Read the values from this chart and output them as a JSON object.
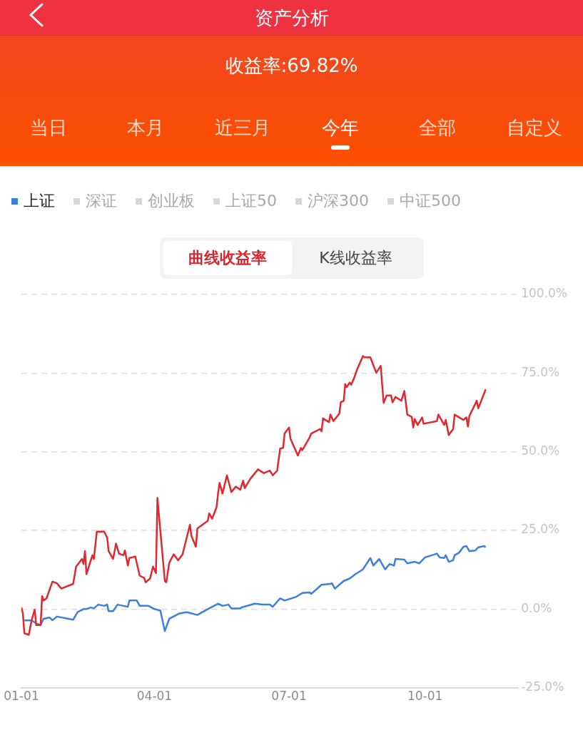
{
  "chart_data": {
    "type": "line",
    "title": "资产分析",
    "subtitle": "收益率:69.82%",
    "annotations": [
      "当日",
      "本月",
      "近三月",
      "今年",
      "全部",
      "自定义",
      "深证",
      "创业板",
      "上证50",
      "沪深300",
      "中证500",
      "曲线收益率",
      "K线收益率"
    ],
    "legend": "top left",
    "grid": "y",
    "xlim": [
      "--01-01",
      "--12-03"
    ],
    "xticks": [
      {
        "value": "--01-01",
        "label": "01-01"
      },
      {
        "value": "--04-01",
        "label": "04-01"
      },
      {
        "value": "--07-01",
        "label": "07-01"
      },
      {
        "value": "--10-01",
        "label": "10-01"
      }
    ],
    "ylim": [
      -25,
      100
    ],
    "yticks": [
      {
        "value": -25,
        "label": "-25.0%"
      },
      {
        "value": 0,
        "label": "0.0%"
      },
      {
        "value": 25,
        "label": "25.0%"
      },
      {
        "value": 50,
        "label": "50.0%"
      },
      {
        "value": 75,
        "label": "75.0%"
      },
      {
        "value": 100,
        "label": "100.0%"
      }
    ],
    "series": [
      {
        "color": "#e0282e",
        "x": [
          "--01-01",
          "--01-02",
          "--01-03",
          "--01-06",
          "--01-08",
          "--01-10",
          "--01-11",
          "--01-14",
          "--01-15",
          "--01-16",
          "--01-18",
          "--01-22",
          "--01-25",
          "--01-28",
          "--02-05",
          "--02-07",
          "--02-11",
          "--02-12",
          "--02-13",
          "--02-14",
          "--02-18",
          "--02-19",
          "--02-21",
          "--02-26",
          "--02-28",
          "--03-01",
          "--03-04",
          "--03-06",
          "--03-08",
          "--03-11",
          "--03-12",
          "--03-14",
          "--03-15",
          "--03-19",
          "--03-22",
          "--03-25",
          "--03-26",
          "--03-29",
          "--03-31",
          "--04-02",
          "--04-03",
          "--04-08",
          "--04-09",
          "--04-11",
          "--04-14",
          "--04-17",
          "--04-20",
          "--04-25",
          "--04-26",
          "--04-29",
          "--04-30",
          "--05-07",
          "--05-08",
          "--05-10",
          "--05-13",
          "--05-14",
          "--05-15",
          "--05-17",
          "--05-20",
          "--05-23",
          "--05-26",
          "--05-29",
          "--05-31",
          "--06-01",
          "--06-05",
          "--06-10",
          "--06-14",
          "--06-18",
          "--06-20",
          "--06-23",
          "--06-25",
          "--06-27",
          "--06-28",
          "--07-01",
          "--07-02",
          "--07-07",
          "--07-09",
          "--07-10",
          "--07-15",
          "--07-16",
          "--07-22",
          "--07-23",
          "--07-24",
          "--07-28",
          "--07-29",
          "--07-31",
          "--08-04",
          "--08-05",
          "--08-07",
          "--08-08",
          "--08-09",
          "--08-11",
          "--08-12",
          "--08-14",
          "--08-16",
          "--08-20",
          "--08-21",
          "--08-25",
          "--08-29",
          "--09-01",
          "--09-03",
          "--09-05",
          "--09-08",
          "--09-09",
          "--09-11",
          "--09-15",
          "--09-17",
          "--09-19",
          "--09-22",
          "--09-23",
          "--09-24",
          "--09-26",
          "--09-29",
          "--09-30",
          "--10-09",
          "--10-10",
          "--10-14",
          "--10-15",
          "--10-17",
          "--10-20",
          "--10-21",
          "--10-27",
          "--10-29",
          "--10-30",
          "--10-31",
          "--11-05",
          "--11-06",
          "--11-11"
        ],
        "values": [
          0.5,
          -1.4,
          -7.7,
          -8.2,
          -3.4,
          -0.2,
          -5.1,
          -5.1,
          4.1,
          2.7,
          3.4,
          8.7,
          8.2,
          6.5,
          8.0,
          13.5,
          15.9,
          14.3,
          18.4,
          11.1,
          17.1,
          15.9,
          24.6,
          24.6,
          22.7,
          18.4,
          15.9,
          20.8,
          17.6,
          17.1,
          18.6,
          13.8,
          16.2,
          16.7,
          10.6,
          9.9,
          8.5,
          9.7,
          13.5,
          11.4,
          35.3,
          8.9,
          8.5,
          14.7,
          17.4,
          15.5,
          17.4,
          26.8,
          23.2,
          19.8,
          25.6,
          28.0,
          30.4,
          28.7,
          32.4,
          36.7,
          40.1,
          36.7,
          42.5,
          37.2,
          38.9,
          37.9,
          40.8,
          38.4,
          41.5,
          44.4,
          43.2,
          44.0,
          42.5,
          44.0,
          51.0,
          51.2,
          55.8,
          57.7,
          54.1,
          48.8,
          51.2,
          50.5,
          54.6,
          55.8,
          57.2,
          56.5,
          60.6,
          59.4,
          61.8,
          59.7,
          62.1,
          65.7,
          66.2,
          71.5,
          70.5,
          72.0,
          71.3,
          73.4,
          76.1,
          80.4,
          80.0,
          80.0,
          75.1,
          77.3,
          65.5,
          67.9,
          67.9,
          65.7,
          67.4,
          66.2,
          69.3,
          61.8,
          61.1,
          57.7,
          60.4,
          58.5,
          60.9,
          58.9,
          59.7,
          61.8,
          58.5,
          60.1,
          55.3,
          57.2,
          61.8,
          60.1,
          60.9,
          58.0,
          61.4,
          66.2,
          63.8,
          69.8
        ]
      },
      {
        "name": "上证",
        "color": "#3d7fd9",
        "x": [
          "--01-03",
          "--01-08",
          "--01-11",
          "--01-14",
          "--01-16",
          "--01-20",
          "--01-22",
          "--01-25",
          "--02-05",
          "--02-08",
          "--02-12",
          "--02-14",
          "--02-17",
          "--02-19",
          "--02-22",
          "--02-26",
          "--02-28",
          "--03-01",
          "--03-04",
          "--03-07",
          "--03-11",
          "--03-14",
          "--03-15",
          "--03-20",
          "--03-22",
          "--03-28",
          "--04-01",
          "--04-05",
          "--04-08",
          "--04-11",
          "--04-18",
          "--04-23",
          "--04-30",
          "--05-08",
          "--05-14",
          "--05-17",
          "--05-21",
          "--05-23",
          "--05-29",
          "--05-30",
          "--06-08",
          "--06-13",
          "--06-18",
          "--06-20",
          "--06-25",
          "--06-28",
          "--07-06",
          "--07-10",
          "--07-15",
          "--07-16",
          "--07-23",
          "--07-29",
          "--07-30",
          "--08-01",
          "--08-07",
          "--08-11",
          "--08-15",
          "--08-20",
          "--08-25",
          "--08-27",
          "--08-31",
          "--09-04",
          "--09-07",
          "--09-10",
          "--09-11",
          "--09-17",
          "--09-19",
          "--09-24",
          "--09-27",
          "--10-01",
          "--10-09",
          "--10-11",
          "--10-14",
          "--10-15",
          "--10-17",
          "--10-20",
          "--10-21",
          "--10-24",
          "--10-27",
          "--10-29",
          "--10-31",
          "--11-04",
          "--11-06",
          "--11-10",
          "--11-11"
        ],
        "values": [
          -3.6,
          -3.6,
          -4.6,
          -5.1,
          -3.1,
          -2.7,
          -3.6,
          -2.4,
          -3.4,
          -1.0,
          0,
          0,
          0.5,
          0.2,
          1.4,
          1.0,
          1.4,
          -0.7,
          -0.7,
          1.4,
          1.0,
          0.7,
          2.7,
          2.7,
          1.0,
          1.0,
          0,
          -0.5,
          -7.0,
          -3.1,
          -1.4,
          -1.0,
          -1.9,
          0.2,
          1.7,
          1.0,
          1.4,
          0.2,
          0.2,
          0.5,
          1.7,
          1.4,
          1.4,
          0.7,
          3.4,
          2.7,
          3.9,
          5.1,
          5.3,
          4.8,
          7.7,
          8.0,
          8.2,
          6.5,
          8.9,
          9.7,
          11.1,
          12.6,
          16.2,
          13.8,
          15.9,
          12.6,
          14.3,
          13.8,
          15.9,
          15.7,
          14.5,
          15.0,
          14.5,
          16.4,
          17.6,
          16.4,
          16.2,
          17.1,
          15.0,
          15.5,
          17.1,
          17.9,
          19.8,
          20.0,
          18.4,
          18.6,
          19.6,
          20.0,
          19.6
        ]
      }
    ]
  }
}
